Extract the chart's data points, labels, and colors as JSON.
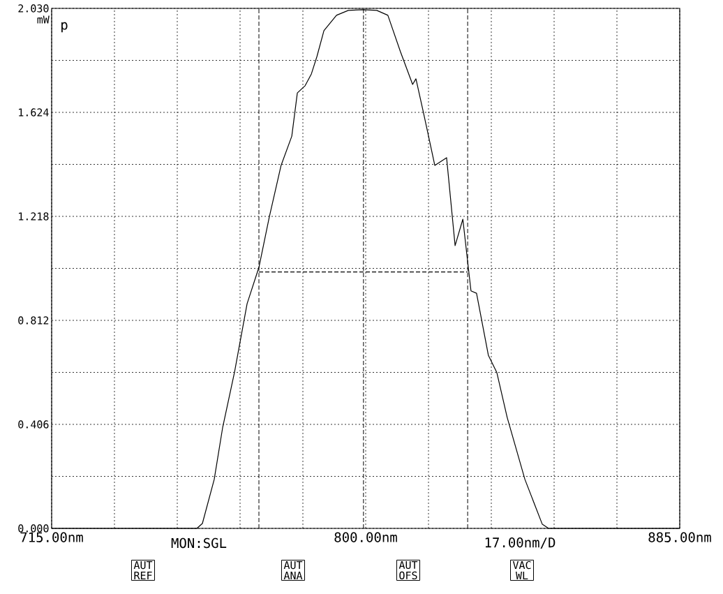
{
  "chart_data": {
    "type": "line",
    "ylabel": "mW",
    "x": [
      715,
      754.3,
      755.8,
      759.0,
      761.3,
      764.5,
      767.9,
      771.1,
      773.9,
      777.1,
      780.0,
      781.5,
      783.6,
      785.3,
      786.8,
      788.7,
      792.1,
      795.3,
      799.4,
      803.0,
      806.0,
      809.4,
      812.7,
      813.6,
      815.5,
      816.8,
      818.7,
      821.9,
      824.2,
      826.3,
      827.6,
      828.5,
      830.0,
      833.2,
      835.5,
      838.3,
      843.1,
      847.8,
      849.5,
      885
    ],
    "series": [
      {
        "color": "#000000",
        "line_style": "solid",
        "values": [
          0,
          0,
          0.019,
          0.191,
          0.395,
          0.61,
          0.877,
          1.019,
          1.215,
          1.417,
          1.531,
          1.7,
          1.728,
          1.774,
          1.842,
          1.943,
          2.003,
          2.022,
          2.025,
          2.022,
          2.003,
          1.861,
          1.733,
          1.755,
          1.632,
          1.545,
          1.417,
          1.447,
          1.104,
          1.207,
          1.041,
          0.927,
          0.918,
          0.676,
          0.608,
          0.433,
          0.191,
          0.016,
          0,
          0
        ]
      },
      {
        "color": "#000000",
        "line_style": "dashed",
        "x": [
          771.1,
          827.6
        ],
        "values": [
          1.001,
          1.001
        ]
      }
    ],
    "xlim": [
      715,
      885
    ],
    "ylim": [
      0,
      2.03
    ],
    "xticks": [
      {
        "value": 715,
        "label": "715.00nm"
      },
      {
        "value": 732,
        "label": null
      },
      {
        "value": 749,
        "label": null
      },
      {
        "value": 766,
        "label": null
      },
      {
        "value": 783,
        "label": null
      },
      {
        "value": 800,
        "label": "800.00nm"
      },
      {
        "value": 817,
        "label": null
      },
      {
        "value": 834,
        "label": null
      },
      {
        "value": 851,
        "label": null
      },
      {
        "value": 868,
        "label": null
      },
      {
        "value": 885,
        "label": "885.00nm"
      }
    ],
    "yticks": [
      {
        "value": 0,
        "label": "0.000"
      },
      {
        "value": 0.203,
        "label": null
      },
      {
        "value": 0.406,
        "label": "0.406"
      },
      {
        "value": 0.609,
        "label": null
      },
      {
        "value": 0.812,
        "label": "0.812"
      },
      {
        "value": 1.015,
        "label": null
      },
      {
        "value": 1.218,
        "label": "1.218"
      },
      {
        "value": 1.421,
        "label": null
      },
      {
        "value": 1.624,
        "label": "1.624"
      },
      {
        "value": 1.827,
        "label": null
      },
      {
        "value": 2.03,
        "label": "2.030"
      }
    ],
    "grid": true,
    "ref_lines": [
      {
        "axis": "x",
        "value": 771.1,
        "line_style": "dashed"
      },
      {
        "axis": "x",
        "value": 799.4,
        "line_style": "dashed"
      },
      {
        "axis": "x",
        "value": 827.6,
        "line_style": "dashed"
      }
    ],
    "annotations": [
      "p",
      "MON:SGL",
      "17.00nm/D",
      "AUT REF",
      "AUT ANA",
      "AUT OFS",
      "VAC WL"
    ]
  }
}
